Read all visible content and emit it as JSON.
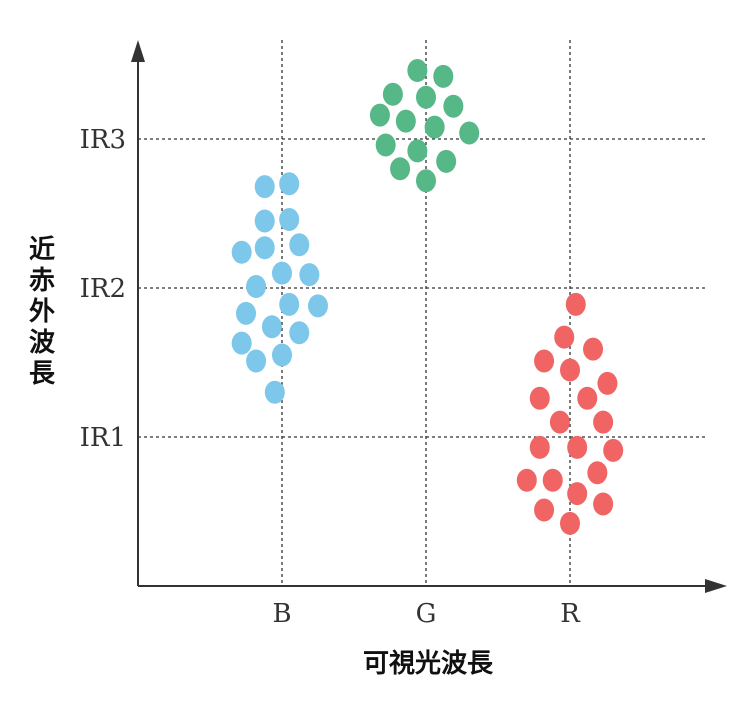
{
  "chart_data": {
    "type": "scatter",
    "title": "",
    "xlabel": "可視光波長",
    "ylabel": "近赤外波長",
    "x_ticks": [
      "B",
      "G",
      "R"
    ],
    "y_ticks": [
      "IR1",
      "IR2",
      "IR3"
    ],
    "grid": true,
    "legend": "none",
    "series": [
      {
        "color": "#7cc7ea",
        "points": [
          [
            -0.12,
            2.68
          ],
          [
            0.05,
            2.7
          ],
          [
            -0.12,
            2.45
          ],
          [
            0.05,
            2.46
          ],
          [
            -0.28,
            2.24
          ],
          [
            -0.12,
            2.27
          ],
          [
            0.12,
            2.29
          ],
          [
            -0.18,
            2.01
          ],
          [
            0.0,
            2.1
          ],
          [
            0.19,
            2.09
          ],
          [
            -0.25,
            1.83
          ],
          [
            0.05,
            1.89
          ],
          [
            0.25,
            1.88
          ],
          [
            -0.28,
            1.63
          ],
          [
            -0.07,
            1.74
          ],
          [
            0.12,
            1.7
          ],
          [
            -0.18,
            1.51
          ],
          [
            0.0,
            1.55
          ],
          [
            -0.05,
            1.3
          ]
        ]
      },
      {
        "color": "#56b787",
        "points": [
          [
            -0.06,
            3.46
          ],
          [
            0.12,
            3.42
          ],
          [
            -0.23,
            3.3
          ],
          [
            0.0,
            3.28
          ],
          [
            0.19,
            3.22
          ],
          [
            -0.32,
            3.16
          ],
          [
            -0.14,
            3.12
          ],
          [
            0.06,
            3.08
          ],
          [
            0.3,
            3.04
          ],
          [
            -0.28,
            2.96
          ],
          [
            -0.06,
            2.92
          ],
          [
            0.14,
            2.85
          ],
          [
            -0.18,
            2.8
          ],
          [
            0.0,
            2.72
          ]
        ]
      },
      {
        "color": "#f06464",
        "points": [
          [
            0.04,
            1.89
          ],
          [
            -0.04,
            1.67
          ],
          [
            0.16,
            1.59
          ],
          [
            -0.18,
            1.51
          ],
          [
            0.0,
            1.45
          ],
          [
            0.26,
            1.36
          ],
          [
            -0.21,
            1.26
          ],
          [
            0.12,
            1.26
          ],
          [
            -0.07,
            1.1
          ],
          [
            0.23,
            1.1
          ],
          [
            -0.21,
            0.93
          ],
          [
            0.05,
            0.93
          ],
          [
            0.3,
            0.91
          ],
          [
            -0.3,
            0.71
          ],
          [
            -0.12,
            0.71
          ],
          [
            0.19,
            0.76
          ],
          [
            0.05,
            0.62
          ],
          [
            0.23,
            0.55
          ],
          [
            -0.18,
            0.51
          ],
          [
            0.0,
            0.42
          ]
        ]
      }
    ]
  }
}
